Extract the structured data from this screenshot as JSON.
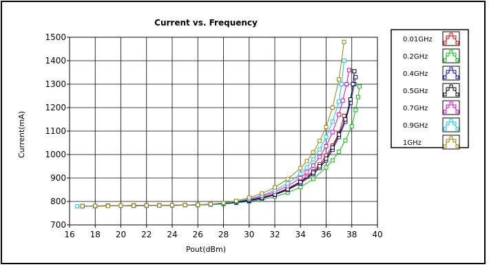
{
  "chart_data": {
    "type": "line",
    "title": "Current vs. Frequency",
    "xlabel": "Pout(dBm)",
    "ylabel": "Current(mA)",
    "xlim": [
      16,
      40
    ],
    "ylim": [
      700,
      1500
    ],
    "x_ticks": [
      16,
      18,
      20,
      22,
      24,
      26,
      28,
      30,
      32,
      34,
      36,
      38,
      40
    ],
    "y_ticks": [
      700,
      800,
      900,
      1000,
      1100,
      1200,
      1300,
      1400,
      1500
    ],
    "grid": true,
    "legend_position": "right",
    "series": [
      {
        "name": "0.01GHz",
        "color": "#e00000",
        "marker": "square",
        "points": [
          [
            17,
            780
          ],
          [
            18,
            780
          ],
          [
            19,
            781
          ],
          [
            20,
            781
          ],
          [
            21,
            782
          ],
          [
            22,
            782
          ],
          [
            23,
            783
          ],
          [
            24,
            783
          ],
          [
            25,
            784
          ],
          [
            26,
            785
          ],
          [
            27,
            787
          ],
          [
            28,
            790
          ],
          [
            29,
            797
          ],
          [
            30,
            806
          ],
          [
            31,
            817
          ],
          [
            32,
            833
          ],
          [
            33,
            855
          ],
          [
            34,
            885
          ],
          [
            34.5,
            905
          ],
          [
            35,
            929
          ],
          [
            35.5,
            958
          ],
          [
            36,
            995
          ],
          [
            36.5,
            1038
          ],
          [
            37,
            1090
          ],
          [
            37.4,
            1165
          ]
        ]
      },
      {
        "name": "0.2GHz",
        "color": "#00c000",
        "marker": "square",
        "points": [
          [
            17,
            780
          ],
          [
            18,
            780
          ],
          [
            19,
            781
          ],
          [
            20,
            781
          ],
          [
            21,
            782
          ],
          [
            22,
            782
          ],
          [
            23,
            783
          ],
          [
            24,
            783
          ],
          [
            25,
            784
          ],
          [
            26,
            785
          ],
          [
            27,
            787
          ],
          [
            28,
            789
          ],
          [
            29,
            794
          ],
          [
            30,
            800
          ],
          [
            31,
            808
          ],
          [
            32,
            820
          ],
          [
            33,
            837
          ],
          [
            34,
            861
          ],
          [
            35,
            896
          ],
          [
            36,
            945
          ],
          [
            36.5,
            975
          ],
          [
            37,
            1012
          ],
          [
            37.5,
            1060
          ],
          [
            38,
            1120
          ],
          [
            38.3,
            1190
          ],
          [
            38.5,
            1245
          ],
          [
            38.6,
            1290
          ]
        ]
      },
      {
        "name": "0.4GHz",
        "color": "#0000e0",
        "marker": "square",
        "points": [
          [
            17,
            779
          ],
          [
            18,
            780
          ],
          [
            19,
            781
          ],
          [
            20,
            781
          ],
          [
            21,
            782
          ],
          [
            22,
            782
          ],
          [
            23,
            783
          ],
          [
            24,
            783
          ],
          [
            25,
            784
          ],
          [
            26,
            785
          ],
          [
            27,
            787
          ],
          [
            28,
            790
          ],
          [
            29,
            796
          ],
          [
            30,
            803
          ],
          [
            31,
            813
          ],
          [
            32,
            828
          ],
          [
            33,
            849
          ],
          [
            34,
            877
          ],
          [
            35,
            917
          ],
          [
            35.5,
            943
          ],
          [
            36,
            975
          ],
          [
            36.5,
            1020
          ],
          [
            37,
            1075
          ],
          [
            37.5,
            1140
          ],
          [
            37.9,
            1220
          ],
          [
            38.2,
            1300
          ],
          [
            38.3,
            1330
          ]
        ]
      },
      {
        "name": "0.5GHz",
        "color": "#000000",
        "marker": "square",
        "points": [
          [
            17,
            780
          ],
          [
            18,
            781
          ],
          [
            19,
            782
          ],
          [
            20,
            782
          ],
          [
            21,
            783
          ],
          [
            22,
            783
          ],
          [
            23,
            784
          ],
          [
            24,
            784
          ],
          [
            25,
            785
          ],
          [
            26,
            786
          ],
          [
            27,
            788
          ],
          [
            28,
            791
          ],
          [
            29,
            797
          ],
          [
            30,
            805
          ],
          [
            31,
            815
          ],
          [
            32,
            830
          ],
          [
            33,
            852
          ],
          [
            34,
            882
          ],
          [
            35,
            923
          ],
          [
            35.5,
            950
          ],
          [
            36,
            983
          ],
          [
            36.5,
            1030
          ],
          [
            37,
            1085
          ],
          [
            37.5,
            1150
          ],
          [
            37.9,
            1235
          ],
          [
            38.1,
            1300
          ],
          [
            38.2,
            1355
          ]
        ]
      },
      {
        "name": "0.7GHz",
        "color": "#e000e0",
        "marker": "square",
        "points": [
          [
            17,
            780
          ],
          [
            18,
            781
          ],
          [
            19,
            781
          ],
          [
            20,
            782
          ],
          [
            21,
            782
          ],
          [
            22,
            783
          ],
          [
            23,
            783
          ],
          [
            24,
            784
          ],
          [
            25,
            785
          ],
          [
            26,
            786
          ],
          [
            27,
            788
          ],
          [
            28,
            792
          ],
          [
            29,
            799
          ],
          [
            30,
            809
          ],
          [
            31,
            822
          ],
          [
            32,
            841
          ],
          [
            33,
            866
          ],
          [
            34,
            900
          ],
          [
            34.5,
            925
          ],
          [
            35,
            953
          ],
          [
            35.5,
            990
          ],
          [
            36,
            1035
          ],
          [
            36.5,
            1095
          ],
          [
            37,
            1170
          ],
          [
            37.3,
            1230
          ],
          [
            37.6,
            1300
          ],
          [
            37.8,
            1360
          ]
        ]
      },
      {
        "name": "0.9GHz",
        "color": "#00d0e0",
        "marker": "square",
        "points": [
          [
            16.6,
            779
          ],
          [
            17,
            779
          ],
          [
            18,
            780
          ],
          [
            19,
            781
          ],
          [
            20,
            781
          ],
          [
            21,
            782
          ],
          [
            22,
            782
          ],
          [
            23,
            783
          ],
          [
            24,
            783
          ],
          [
            25,
            784
          ],
          [
            26,
            785
          ],
          [
            27,
            788
          ],
          [
            28,
            792
          ],
          [
            29,
            800
          ],
          [
            30,
            811
          ],
          [
            31,
            826
          ],
          [
            32,
            848
          ],
          [
            33,
            877
          ],
          [
            34,
            918
          ],
          [
            34.5,
            945
          ],
          [
            35,
            980
          ],
          [
            35.5,
            1022
          ],
          [
            36,
            1075
          ],
          [
            36.5,
            1140
          ],
          [
            37,
            1225
          ],
          [
            37.2,
            1300
          ],
          [
            37.4,
            1400
          ]
        ]
      },
      {
        "name": "1GHz",
        "color": "#a08000",
        "marker": "square",
        "points": [
          [
            17,
            780
          ],
          [
            18,
            781
          ],
          [
            19,
            781
          ],
          [
            20,
            782
          ],
          [
            21,
            782
          ],
          [
            22,
            783
          ],
          [
            23,
            783
          ],
          [
            24,
            784
          ],
          [
            25,
            785
          ],
          [
            26,
            786
          ],
          [
            27,
            789
          ],
          [
            28,
            794
          ],
          [
            29,
            803
          ],
          [
            30,
            816
          ],
          [
            31,
            834
          ],
          [
            32,
            860
          ],
          [
            33,
            895
          ],
          [
            34,
            942
          ],
          [
            34.5,
            972
          ],
          [
            35,
            1010
          ],
          [
            35.5,
            1058
          ],
          [
            36,
            1117
          ],
          [
            36.5,
            1200
          ],
          [
            37,
            1320
          ],
          [
            37.4,
            1480
          ]
        ]
      }
    ]
  }
}
